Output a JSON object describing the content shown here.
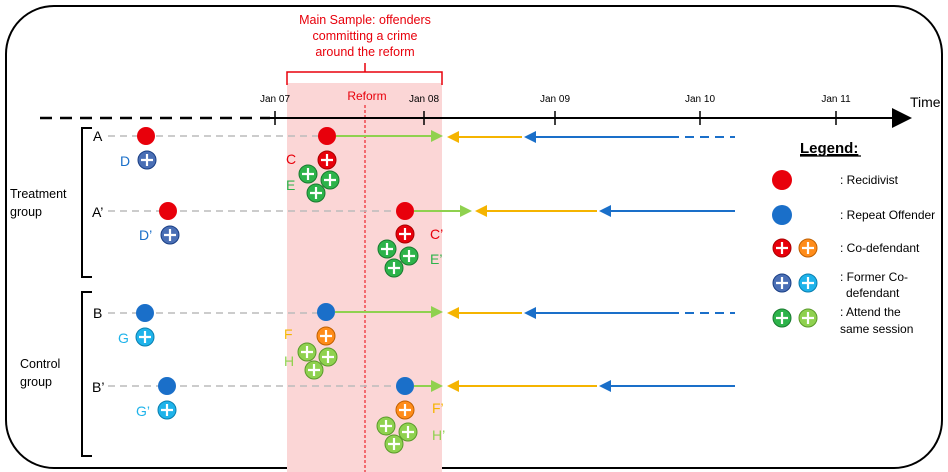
{
  "title_box": {
    "lines": [
      "Main Sample: offenders",
      "committing a crime",
      "around the reform"
    ],
    "reform_label": "Reform"
  },
  "axis": {
    "label": "Time",
    "ticks": [
      "Jan 07",
      "Jan 08",
      "Jan 09",
      "Jan 10",
      "Jan 11"
    ]
  },
  "groups": {
    "treatment": [
      "Treatment",
      "group"
    ],
    "control": [
      "Control",
      "group"
    ]
  },
  "rows": {
    "a": "A",
    "a_prime": "A’",
    "b": "B",
    "b_prime": "B’"
  },
  "letters": {
    "d": "D",
    "c": "C",
    "e": "E",
    "d_prime": "D’",
    "c_prime": "C’",
    "e_prime": "E’",
    "g": "G",
    "f": "F",
    "h": "H",
    "g_prime": "G’",
    "f_prime": "F’",
    "h_prime": "H’"
  },
  "legend": {
    "title": "Legend:",
    "recidivist": ": Recidivist",
    "repeat_offender": ": Repeat Offender",
    "co_defendant": ": Co-defendant",
    "former_line1": ": Former Co-",
    "former_line2": "defendant",
    "attend_line1": ": Attend the",
    "attend_line2": "same session"
  },
  "colors": {
    "red": "#e8000b",
    "blue": "#1a6fc9",
    "green": "#2db34a",
    "light_green": "#8fd14f",
    "orange": "#ff8c1a",
    "steel_blue": "#4a6fb5",
    "cyan": "#1fb3ea",
    "yellow": "#f5b400",
    "pink": "#fbd6d6"
  }
}
